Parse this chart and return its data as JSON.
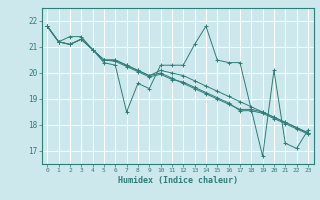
{
  "title": "",
  "xlabel": "Humidex (Indice chaleur)",
  "ylabel": "",
  "xlim": [
    -0.5,
    23.5
  ],
  "ylim": [
    16.5,
    22.5
  ],
  "xticks": [
    0,
    1,
    2,
    3,
    4,
    5,
    6,
    7,
    8,
    9,
    10,
    11,
    12,
    13,
    14,
    15,
    16,
    17,
    18,
    19,
    20,
    21,
    22,
    23
  ],
  "yticks": [
    17,
    18,
    19,
    20,
    21,
    22
  ],
  "bg_color": "#cce8ec",
  "line_color": "#2d7d78",
  "grid_color": "#ffffff",
  "lines": [
    [
      21.8,
      21.2,
      21.4,
      21.4,
      20.9,
      20.4,
      20.3,
      18.5,
      19.6,
      19.4,
      20.3,
      20.3,
      20.3,
      21.1,
      21.8,
      20.5,
      20.4,
      20.4,
      18.6,
      16.8,
      20.1,
      17.3,
      17.1,
      17.8
    ],
    [
      21.8,
      21.2,
      21.1,
      21.3,
      20.9,
      20.5,
      20.5,
      20.3,
      20.1,
      19.9,
      20.1,
      20.0,
      19.9,
      19.7,
      19.5,
      19.3,
      19.1,
      18.9,
      18.7,
      18.5,
      18.3,
      18.1,
      17.9,
      17.7
    ],
    [
      21.8,
      21.2,
      21.1,
      21.3,
      20.9,
      20.5,
      20.5,
      20.3,
      20.1,
      19.9,
      20.0,
      19.8,
      19.6,
      19.4,
      19.2,
      19.0,
      18.8,
      18.6,
      18.6,
      18.5,
      18.3,
      18.1,
      17.9,
      17.7
    ],
    [
      21.8,
      21.2,
      21.1,
      21.3,
      20.9,
      20.5,
      20.45,
      20.25,
      20.05,
      19.85,
      19.95,
      19.75,
      19.65,
      19.45,
      19.25,
      19.05,
      18.85,
      18.55,
      18.55,
      18.45,
      18.25,
      18.05,
      17.85,
      17.65
    ]
  ]
}
